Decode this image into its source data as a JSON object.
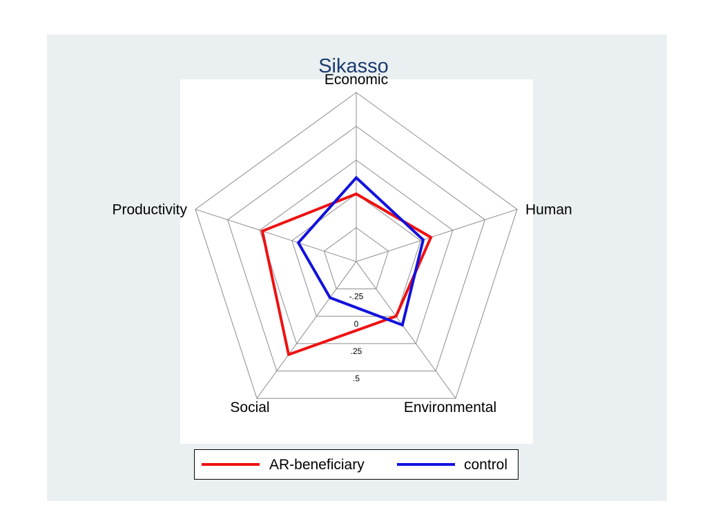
{
  "chart_data": {
    "type": "radar",
    "title": "Sikasso",
    "axes": [
      "Economic",
      "Human",
      "Environmental",
      "Social",
      "Productivity"
    ],
    "rlim": [
      -0.5,
      0.75
    ],
    "rings": [
      -0.5,
      -0.25,
      0,
      0.25,
      0.5,
      0.75
    ],
    "tick_labels": [
      "-.25",
      "0",
      ".25",
      ".5"
    ],
    "tick_values": [
      -0.25,
      0,
      0.25,
      0.5
    ],
    "series": [
      {
        "name": "AR-beneficiary",
        "color": "#ee1111",
        "values": [
          0.0,
          0.08,
          0.0,
          0.35,
          0.23
        ]
      },
      {
        "name": "control",
        "color": "#1111dd",
        "values": [
          0.12,
          0.02,
          0.08,
          -0.17,
          -0.05
        ]
      }
    ],
    "legend": "bottom"
  }
}
